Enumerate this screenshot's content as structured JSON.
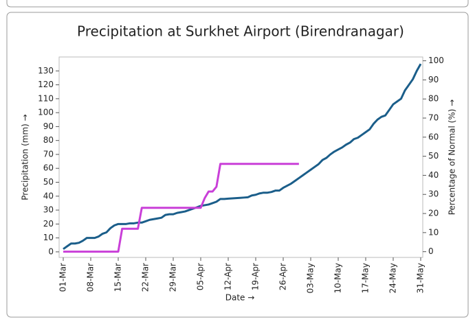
{
  "chart_data": {
    "type": "line",
    "title": "Precipitation at Surkhet Airport (Birendranagar)",
    "x_label": "Date →",
    "y_label": "Precipitation (mm) →",
    "y2_label": "Percentage of Normal (%) →",
    "categories": [
      "01-Mar",
      null,
      null,
      null,
      null,
      null,
      null,
      "08-Mar",
      null,
      null,
      null,
      null,
      null,
      null,
      "15-Mar",
      null,
      null,
      null,
      null,
      null,
      null,
      "22-Mar",
      null,
      null,
      null,
      null,
      null,
      null,
      "29-Mar",
      null,
      null,
      null,
      null,
      null,
      null,
      "05-Apr",
      null,
      null,
      null,
      null,
      null,
      null,
      "12-Apr",
      null,
      null,
      null,
      null,
      null,
      null,
      "19-Apr",
      null,
      null,
      null,
      null,
      null,
      null,
      "26-Apr",
      null,
      null,
      null,
      null,
      null,
      null,
      "03-May",
      null,
      null,
      null,
      null,
      null,
      null,
      "10-May",
      null,
      null,
      null,
      null,
      null,
      null,
      "17-May",
      null,
      null,
      null,
      null,
      null,
      null,
      "24-May",
      null,
      null,
      null,
      null,
      null,
      null,
      "31-May"
    ],
    "series": [
      {
        "color": "#1b5e8a",
        "axis": "y",
        "values": [
          2,
          4,
          6,
          6,
          6.5,
          8,
          10,
          10,
          10,
          11,
          13,
          14,
          17,
          19,
          20,
          20,
          20,
          20.5,
          20.5,
          21,
          21,
          22,
          23,
          23.5,
          24,
          24.5,
          26.5,
          27,
          27,
          28,
          28.5,
          29,
          30,
          31,
          32,
          33,
          33.5,
          34,
          35,
          36,
          38,
          38,
          38.2,
          38.4,
          38.6,
          38.8,
          39,
          39.2,
          40.5,
          41,
          42,
          42.5,
          42.5,
          43,
          44,
          44,
          46,
          47.5,
          49,
          51,
          53,
          55,
          57,
          59,
          61,
          63,
          66,
          67.5,
          70,
          72,
          73.5,
          75,
          77,
          78.5,
          81,
          82,
          84,
          86,
          88,
          92,
          95,
          97,
          98,
          102,
          106,
          108,
          110,
          116,
          120,
          124,
          130,
          135
        ]
      },
      {
        "color": "#c93fd8",
        "axis": "y2",
        "values": [
          0,
          0,
          0,
          0,
          0,
          0,
          0,
          0,
          0,
          0,
          0,
          0,
          0,
          0,
          0,
          12,
          12,
          12,
          12,
          12,
          23,
          23,
          23,
          23,
          23,
          23,
          23,
          23,
          23,
          23,
          23,
          23,
          23,
          23,
          23,
          23,
          28,
          31.5,
          31.5,
          34,
          46,
          46,
          46,
          46,
          46,
          46,
          46,
          46,
          46,
          46,
          46,
          46,
          46,
          46,
          46,
          46,
          46,
          46,
          46,
          46,
          46,
          null,
          null,
          null,
          null,
          null,
          null,
          null,
          null,
          null,
          null,
          null,
          null,
          null,
          null,
          null,
          null,
          null,
          null,
          null,
          null,
          null,
          null,
          null,
          null,
          null,
          null,
          null,
          null,
          null,
          null,
          null
        ]
      }
    ],
    "ylim": [
      -4,
      140
    ],
    "yticks": [
      0,
      10,
      20,
      30,
      40,
      50,
      60,
      70,
      80,
      90,
      100,
      110,
      120,
      130
    ],
    "y2lim": [
      -3,
      102
    ],
    "y2ticks": [
      0,
      10,
      20,
      30,
      40,
      50,
      60,
      70,
      80,
      90,
      100
    ],
    "grid": false
  }
}
